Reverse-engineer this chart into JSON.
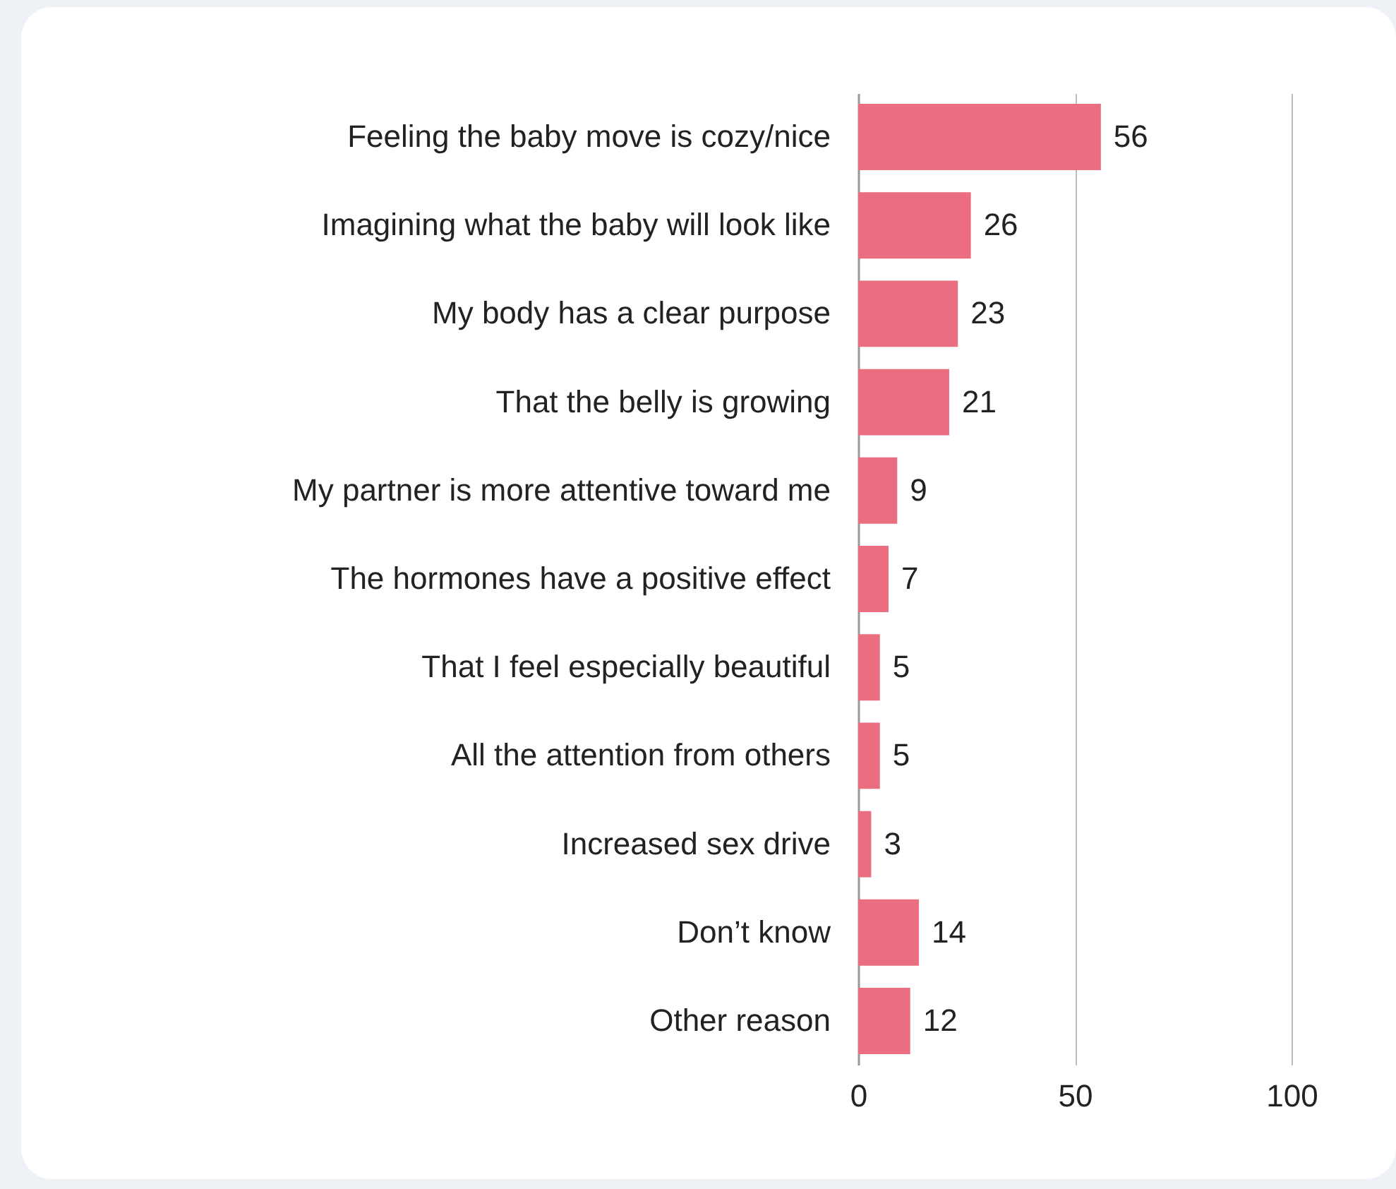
{
  "chart_data": {
    "type": "bar",
    "orientation": "horizontal",
    "categories": [
      "Feeling the baby move is cozy/nice",
      "Imagining what the baby will look like",
      "My body has a clear purpose",
      "That the belly is growing",
      "My partner is more attentive toward me",
      "The hormones have a positive effect",
      "That I feel especially beautiful",
      "All the attention from others",
      "Increased sex drive",
      "Don’t know",
      "Other reason"
    ],
    "values": [
      56,
      26,
      23,
      21,
      9,
      7,
      5,
      5,
      3,
      14,
      12
    ],
    "color": "#ea6e80",
    "xlim": [
      0,
      100
    ],
    "xticks": [
      0,
      50,
      100
    ],
    "grid": "x",
    "data_labels": true
  }
}
